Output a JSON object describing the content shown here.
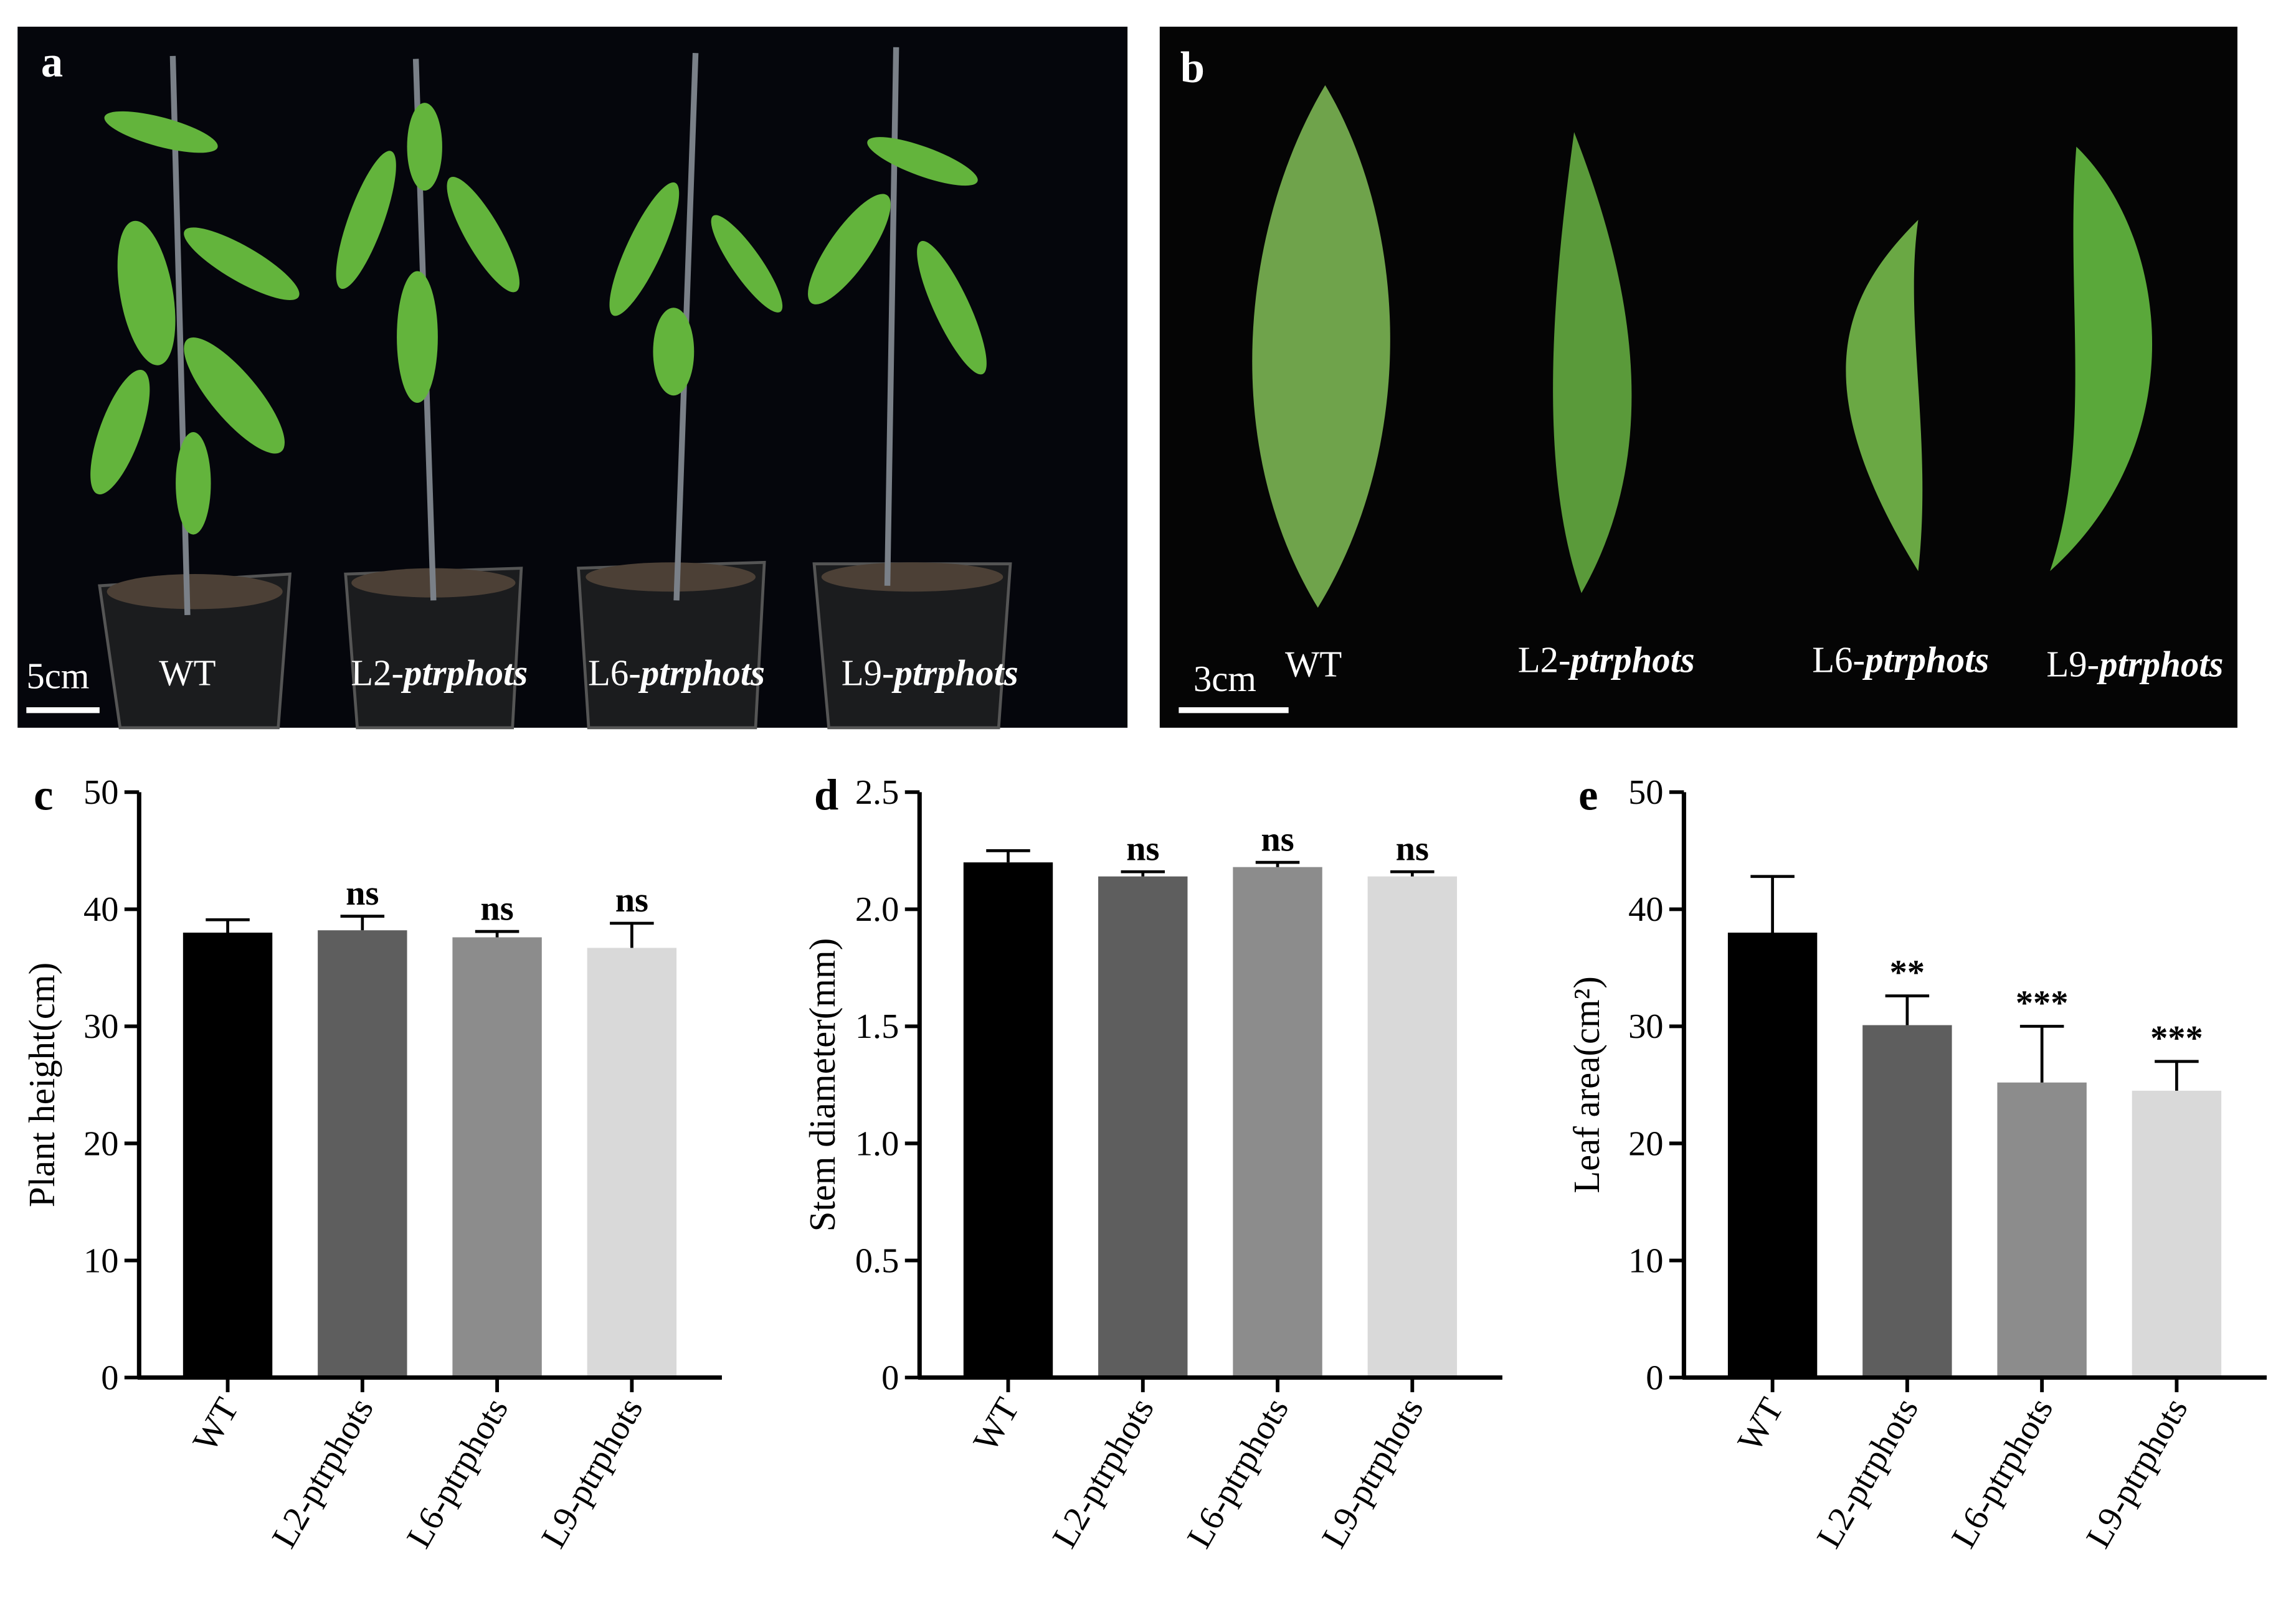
{
  "photos": [
    {
      "panel_label": "a",
      "scale_bar": "5cm",
      "labels": [
        "WT",
        "L2-ptrphots",
        "L6-ptrphots",
        "L9-ptrphots"
      ]
    },
    {
      "panel_label": "b",
      "scale_bar": "3cm",
      "labels": [
        "WT",
        "L2-ptrphots",
        "L6-ptrphots",
        "L9-ptrphots"
      ]
    }
  ],
  "chart_data": [
    {
      "type": "bar",
      "panel_label": "c",
      "y_label": "Plant height(cm)",
      "categories": [
        "WT",
        "L2-ptrphots",
        "L6-ptrphots",
        "L9-ptrphots"
      ],
      "values": [
        38,
        38.2,
        37.6,
        36.7
      ],
      "errors": [
        1.1,
        1.2,
        0.5,
        2.1
      ],
      "annotations": [
        null,
        "ns",
        "ns",
        "ns"
      ],
      "colors": [
        "#000000",
        "#5e5e5e",
        "#8c8c8c",
        "#d9d9d9"
      ],
      "ylim": [
        0,
        50
      ],
      "yticks": [
        0,
        10,
        20,
        30,
        40,
        50
      ]
    },
    {
      "type": "bar",
      "panel_label": "d",
      "y_label": "Stem diameter(mm)",
      "categories": [
        "WT",
        "L2-ptrphots",
        "L6-ptrphots",
        "L9-ptrphots"
      ],
      "values": [
        2.2,
        2.14,
        2.18,
        2.14
      ],
      "errors": [
        0.05,
        0.02,
        0.02,
        0.02
      ],
      "annotations": [
        null,
        "ns",
        "ns",
        "ns"
      ],
      "colors": [
        "#000000",
        "#5e5e5e",
        "#8c8c8c",
        "#d9d9d9"
      ],
      "ylim": [
        0,
        2.5
      ],
      "yticks": [
        0,
        0.5,
        {
          "value": 1,
          "label": "1.0"
        },
        1.5,
        {
          "value": 2,
          "label": "2.0"
        },
        2.5
      ]
    },
    {
      "type": "bar",
      "panel_label": "e",
      "y_label": "Leaf area(cm²)",
      "categories": [
        "WT",
        "L2-ptrphots",
        "L6-ptrphots",
        "L9-ptrphots"
      ],
      "values": [
        38,
        30.1,
        25.2,
        24.5
      ],
      "errors": [
        4.8,
        2.5,
        4.8,
        2.5
      ],
      "annotations": [
        null,
        "**",
        "***",
        "***"
      ],
      "colors": [
        "#000000",
        "#5e5e5e",
        "#8c8c8c",
        "#d9d9d9"
      ],
      "ylim": [
        0,
        50
      ],
      "yticks": [
        0,
        10,
        20,
        30,
        40,
        50
      ]
    }
  ]
}
